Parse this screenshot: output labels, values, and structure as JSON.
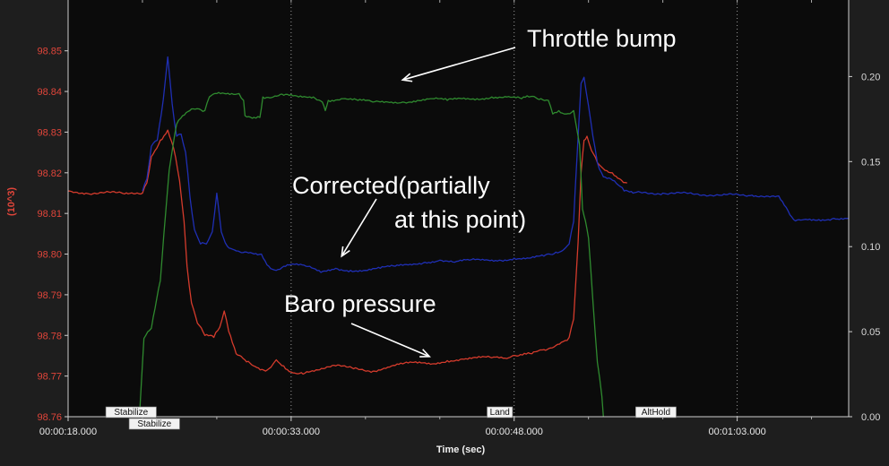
{
  "chart_data": {
    "type": "line",
    "xlabel": "Time (sec)",
    "ylabel_left": "(10^3)",
    "x_ticks": [
      "00:00:18.000",
      "00:00:33.000",
      "00:00:48.000",
      "00:01:03.000"
    ],
    "xlim": [
      18,
      70.5
    ],
    "ylim_left": [
      98.76,
      98.8625
    ],
    "y_ticks_left": [
      "98.76",
      "98.77",
      "98.78",
      "98.79",
      "98.80",
      "98.81",
      "98.82",
      "98.83",
      "98.84",
      "98.85"
    ],
    "ylim_right": [
      0.0,
      0.245
    ],
    "y_ticks_right": [
      "0.00",
      "0.05",
      "0.10",
      "0.15",
      "0.20"
    ],
    "grid": true,
    "colors": {
      "background": "#0b0b0b",
      "baro": "#d43b2c",
      "corrected": "#1f2fb4",
      "throttle": "#2f8a2f",
      "grid": "#9a9a9a"
    },
    "series": [
      {
        "color": "#d43b2c",
        "axis": "left",
        "points": [
          [
            18.0,
            98.8155
          ],
          [
            19.2,
            98.815
          ],
          [
            20.5,
            98.8152
          ],
          [
            21.8,
            98.8148
          ],
          [
            23.0,
            98.815
          ],
          [
            23.3,
            98.8175
          ],
          [
            23.6,
            98.824
          ],
          [
            24.2,
            98.828
          ],
          [
            24.7,
            98.8305
          ],
          [
            25.1,
            98.826
          ],
          [
            25.5,
            98.818
          ],
          [
            25.8,
            98.808
          ],
          [
            26.0,
            98.797
          ],
          [
            26.3,
            98.788
          ],
          [
            26.7,
            98.783
          ],
          [
            27.2,
            98.78
          ],
          [
            27.8,
            98.7795
          ],
          [
            28.2,
            98.782
          ],
          [
            28.5,
            98.786
          ],
          [
            28.8,
            98.781
          ],
          [
            29.3,
            98.7755
          ],
          [
            30.0,
            98.7735
          ],
          [
            30.8,
            98.772
          ],
          [
            31.4,
            98.7715
          ],
          [
            32.0,
            98.774
          ],
          [
            32.5,
            98.7725
          ],
          [
            33.0,
            98.771
          ],
          [
            33.8,
            98.7705
          ],
          [
            34.8,
            98.7715
          ],
          [
            36.0,
            98.7725
          ],
          [
            37.2,
            98.7718
          ],
          [
            38.5,
            98.7712
          ],
          [
            39.5,
            98.7722
          ],
          [
            40.5,
            98.773
          ],
          [
            41.5,
            98.7732
          ],
          [
            42.5,
            98.773
          ],
          [
            43.5,
            98.7738
          ],
          [
            44.5,
            98.7742
          ],
          [
            45.5,
            98.7745
          ],
          [
            46.5,
            98.7745
          ],
          [
            47.5,
            98.7743
          ],
          [
            48.3,
            98.775
          ],
          [
            49.2,
            98.7755
          ],
          [
            50.0,
            98.7765
          ],
          [
            50.8,
            98.7775
          ],
          [
            51.3,
            98.7785
          ],
          [
            51.7,
            98.7795
          ],
          [
            52.0,
            98.784
          ],
          [
            52.3,
            98.803
          ],
          [
            52.5,
            98.82
          ],
          [
            52.7,
            98.828
          ],
          [
            52.9,
            98.829
          ],
          [
            53.2,
            98.8255
          ],
          [
            53.6,
            98.8225
          ],
          [
            54.0,
            98.821
          ],
          [
            54.6,
            98.82
          ],
          [
            55.1,
            98.8185
          ],
          [
            55.6,
            98.8175
          ]
        ]
      },
      {
        "color": "#1f2fb4",
        "axis": "left",
        "points": [
          [
            23.0,
            98.8155
          ],
          [
            23.3,
            98.8185
          ],
          [
            23.6,
            98.8265
          ],
          [
            24.0,
            98.828
          ],
          [
            24.4,
            98.838
          ],
          [
            24.7,
            98.8485
          ],
          [
            25.0,
            98.837
          ],
          [
            25.3,
            98.829
          ],
          [
            25.6,
            98.8295
          ],
          [
            25.9,
            98.825
          ],
          [
            26.2,
            98.814
          ],
          [
            26.5,
            98.806
          ],
          [
            26.9,
            98.8025
          ],
          [
            27.3,
            98.8025
          ],
          [
            27.7,
            98.8055
          ],
          [
            28.0,
            98.815
          ],
          [
            28.3,
            98.8055
          ],
          [
            28.7,
            98.802
          ],
          [
            29.2,
            98.801
          ],
          [
            30.0,
            98.8005
          ],
          [
            31.0,
            98.8
          ],
          [
            31.5,
            98.797
          ],
          [
            32.0,
            98.796
          ],
          [
            32.5,
            98.797
          ],
          [
            33.0,
            98.7975
          ],
          [
            34.0,
            98.797
          ],
          [
            35.0,
            98.7955
          ],
          [
            36.0,
            98.7965
          ],
          [
            37.0,
            98.796
          ],
          [
            38.0,
            98.796
          ],
          [
            39.0,
            98.7965
          ],
          [
            40.0,
            98.797
          ],
          [
            41.0,
            98.7975
          ],
          [
            42.0,
            98.798
          ],
          [
            43.0,
            98.7985
          ],
          [
            44.0,
            98.798
          ],
          [
            45.0,
            98.7985
          ],
          [
            46.0,
            98.7985
          ],
          [
            47.0,
            98.7985
          ],
          [
            48.0,
            98.799
          ],
          [
            49.0,
            98.799
          ],
          [
            50.0,
            98.7995
          ],
          [
            50.8,
            98.8005
          ],
          [
            51.3,
            98.801
          ],
          [
            51.7,
            98.8025
          ],
          [
            52.0,
            98.808
          ],
          [
            52.2,
            98.822
          ],
          [
            52.5,
            98.842
          ],
          [
            52.7,
            98.8435
          ],
          [
            53.0,
            98.8365
          ],
          [
            53.3,
            98.829
          ],
          [
            53.6,
            98.8225
          ],
          [
            54.0,
            98.819
          ],
          [
            54.5,
            98.8185
          ],
          [
            55.0,
            98.817
          ],
          [
            55.4,
            98.8155
          ],
          [
            56.0,
            98.815
          ],
          [
            58.0,
            98.815
          ],
          [
            60.0,
            98.8148
          ],
          [
            62.0,
            98.8145
          ],
          [
            64.0,
            98.8145
          ],
          [
            65.8,
            98.8143
          ],
          [
            66.3,
            98.8115
          ],
          [
            66.8,
            98.8085
          ],
          [
            67.5,
            98.8085
          ],
          [
            68.5,
            98.8085
          ],
          [
            69.5,
            98.8088
          ],
          [
            70.5,
            98.8088
          ]
        ]
      },
      {
        "color": "#2f8a2f",
        "axis": "right",
        "points": [
          [
            22.8,
            0.0
          ],
          [
            23.1,
            0.046
          ],
          [
            23.6,
            0.052
          ],
          [
            24.2,
            0.08
          ],
          [
            24.8,
            0.145
          ],
          [
            25.3,
            0.172
          ],
          [
            25.7,
            0.177
          ],
          [
            26.3,
            0.181
          ],
          [
            26.8,
            0.181
          ],
          [
            27.2,
            0.18
          ],
          [
            27.5,
            0.188
          ],
          [
            28.0,
            0.19
          ],
          [
            29.0,
            0.19
          ],
          [
            29.5,
            0.19
          ],
          [
            29.8,
            0.186
          ],
          [
            29.9,
            0.177
          ],
          [
            30.5,
            0.176
          ],
          [
            30.9,
            0.176
          ],
          [
            31.1,
            0.188
          ],
          [
            31.8,
            0.188
          ],
          [
            32.5,
            0.189
          ],
          [
            33.5,
            0.188
          ],
          [
            34.5,
            0.188
          ],
          [
            35.1,
            0.185
          ],
          [
            35.3,
            0.18
          ],
          [
            35.5,
            0.186
          ],
          [
            36.5,
            0.187
          ],
          [
            37.5,
            0.186
          ],
          [
            38.5,
            0.185
          ],
          [
            39.5,
            0.185
          ],
          [
            40.5,
            0.185
          ],
          [
            41.5,
            0.186
          ],
          [
            42.5,
            0.187
          ],
          [
            43.5,
            0.186
          ],
          [
            44.5,
            0.187
          ],
          [
            45.5,
            0.187
          ],
          [
            46.5,
            0.188
          ],
          [
            47.5,
            0.188
          ],
          [
            48.5,
            0.187
          ],
          [
            49.0,
            0.188
          ],
          [
            49.8,
            0.187
          ],
          [
            50.3,
            0.186
          ],
          [
            50.6,
            0.178
          ],
          [
            51.0,
            0.18
          ],
          [
            51.5,
            0.178
          ],
          [
            52.0,
            0.18
          ],
          [
            52.4,
            0.16
          ],
          [
            52.6,
            0.122
          ],
          [
            52.8,
            0.115
          ],
          [
            53.0,
            0.105
          ],
          [
            53.3,
            0.068
          ],
          [
            53.6,
            0.032
          ],
          [
            53.9,
            0.012
          ],
          [
            54.0,
            0.0
          ]
        ]
      }
    ],
    "annotations": [
      {
        "text": "Throttle bump",
        "arrow_to": [
          40.5,
          0.198
        ],
        "arrow_axis": "right"
      },
      {
        "text": "Corrected(partially",
        "arrow_to": [
          36.4,
          98.7995
        ],
        "arrow_axis": "left"
      },
      {
        "text": "at this point)"
      },
      {
        "text": "Baro pressure",
        "arrow_to": [
          42.3,
          98.7748
        ],
        "arrow_axis": "left"
      }
    ],
    "mode_markers": [
      {
        "x": 23.2,
        "labels": [
          "Stabilize",
          "Stabilize"
        ]
      },
      {
        "x": 48.0,
        "labels": [
          "Land"
        ]
      },
      {
        "x": 58.5,
        "labels": [
          "AltHold"
        ]
      }
    ]
  }
}
